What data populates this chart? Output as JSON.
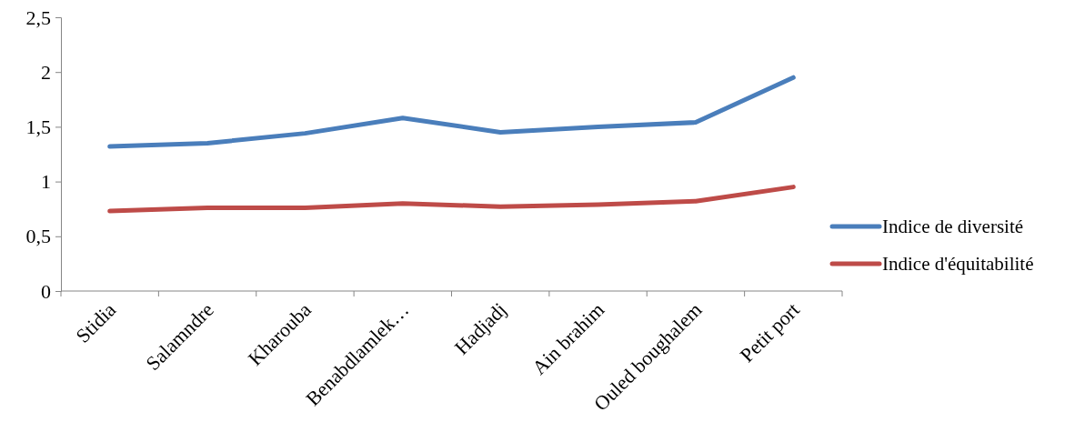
{
  "chart_data": {
    "type": "line",
    "categories": [
      "Stidia",
      "Salamndre",
      "Kharouba",
      "Benabdlamlek…",
      "Hadjadj",
      "Ain brahim",
      "Ouled boughalem",
      "Petit port"
    ],
    "series": [
      {
        "name": "Indice de diversité",
        "color": "#4a7ebb",
        "values": [
          1.32,
          1.35,
          1.44,
          1.58,
          1.45,
          1.5,
          1.54,
          1.95
        ]
      },
      {
        "name": "Indice d'équitabilité",
        "color": "#be4b48",
        "values": [
          0.73,
          0.76,
          0.76,
          0.8,
          0.77,
          0.79,
          0.82,
          0.95
        ]
      }
    ],
    "ylim": [
      0,
      2.5
    ],
    "yticks": [
      {
        "value": 0,
        "label": "0"
      },
      {
        "value": 0.5,
        "label": "0,5"
      },
      {
        "value": 1,
        "label": "1"
      },
      {
        "value": 1.5,
        "label": "1,5"
      },
      {
        "value": 2,
        "label": "2"
      },
      {
        "value": 2.5,
        "label": "2,5"
      }
    ],
    "grid": false,
    "legend": "right",
    "marker": "none",
    "line_style": "solid"
  }
}
